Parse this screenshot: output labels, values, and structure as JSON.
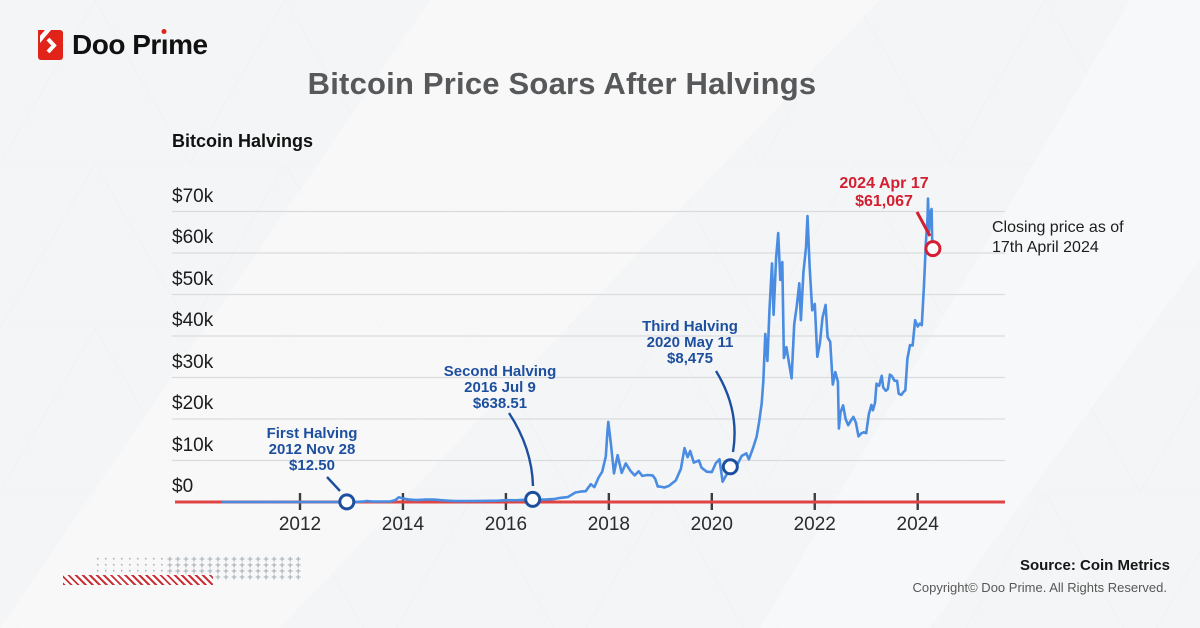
{
  "brand": {
    "name": "Doo Prime",
    "logo_red": "#e2231a",
    "wordmark_pre": "Doo Pr",
    "wordmark_dotless_i": "ı",
    "wordmark_post": "me"
  },
  "header": {
    "title": "Bitcoin Price Soars After Halvings"
  },
  "chart_data": {
    "type": "line",
    "title": "Bitcoin Halvings",
    "series_name": "Bitcoin closing price (USD)",
    "line_color": "#4a8ce1",
    "baseline_color": "#e04343",
    "grid_color": "#d9dcdd",
    "annotation_blue": "#1d4f9f",
    "annotation_red": "#d41e31",
    "ylim": [
      0,
      74000
    ],
    "xlim": [
      2010.5,
      2025.2
    ],
    "y_ticks": [
      {
        "v": 0,
        "label": "$0"
      },
      {
        "v": 10000,
        "label": "$10k"
      },
      {
        "v": 20000,
        "label": "$20k"
      },
      {
        "v": 30000,
        "label": "$30k"
      },
      {
        "v": 40000,
        "label": "$40k"
      },
      {
        "v": 50000,
        "label": "$50k"
      },
      {
        "v": 60000,
        "label": "$60k"
      },
      {
        "v": 70000,
        "label": "$70k"
      }
    ],
    "x_ticks": [
      {
        "year": 2012,
        "label": "2012"
      },
      {
        "year": 2014,
        "label": "2014"
      },
      {
        "year": 2016,
        "label": "2016"
      },
      {
        "year": 2018,
        "label": "2018"
      },
      {
        "year": 2020,
        "label": "2020"
      },
      {
        "year": 2022,
        "label": "2022"
      },
      {
        "year": 2024,
        "label": "2024"
      }
    ],
    "points": [
      [
        2010.5,
        0.1
      ],
      [
        2010.8,
        0.2
      ],
      [
        2011.0,
        0.3
      ],
      [
        2011.3,
        1
      ],
      [
        2011.45,
        30
      ],
      [
        2011.6,
        11
      ],
      [
        2011.9,
        3
      ],
      [
        2012.2,
        5
      ],
      [
        2012.5,
        6.7
      ],
      [
        2012.75,
        11
      ],
      [
        2012.91,
        12.5
      ],
      [
        2013.1,
        25
      ],
      [
        2013.25,
        140
      ],
      [
        2013.3,
        230
      ],
      [
        2013.4,
        100
      ],
      [
        2013.6,
        100
      ],
      [
        2013.75,
        130
      ],
      [
        2013.85,
        450
      ],
      [
        2013.92,
        1130
      ],
      [
        2014.0,
        840
      ],
      [
        2014.1,
        620
      ],
      [
        2014.25,
        450
      ],
      [
        2014.45,
        600
      ],
      [
        2014.6,
        590
      ],
      [
        2014.8,
        380
      ],
      [
        2015.0,
        230
      ],
      [
        2015.1,
        210
      ],
      [
        2015.3,
        245
      ],
      [
        2015.55,
        260
      ],
      [
        2015.85,
        310
      ],
      [
        2016.0,
        430
      ],
      [
        2016.2,
        420
      ],
      [
        2016.45,
        580
      ],
      [
        2016.52,
        638.51
      ],
      [
        2016.65,
        600
      ],
      [
        2016.8,
        630
      ],
      [
        2016.95,
        750
      ],
      [
        2017.05,
        1000
      ],
      [
        2017.2,
        1180
      ],
      [
        2017.35,
        2300
      ],
      [
        2017.45,
        2500
      ],
      [
        2017.55,
        2600
      ],
      [
        2017.65,
        4300
      ],
      [
        2017.72,
        3600
      ],
      [
        2017.8,
        5900
      ],
      [
        2017.87,
        7300
      ],
      [
        2017.94,
        11000
      ],
      [
        2017.97,
        16500
      ],
      [
        2017.99,
        19300
      ],
      [
        2018.04,
        14000
      ],
      [
        2018.1,
        6900
      ],
      [
        2018.17,
        11300
      ],
      [
        2018.25,
        7000
      ],
      [
        2018.33,
        9300
      ],
      [
        2018.42,
        7500
      ],
      [
        2018.5,
        6400
      ],
      [
        2018.58,
        7400
      ],
      [
        2018.65,
        6300
      ],
      [
        2018.75,
        6500
      ],
      [
        2018.85,
        6400
      ],
      [
        2018.9,
        5600
      ],
      [
        2018.95,
        3700
      ],
      [
        2019.0,
        3700
      ],
      [
        2019.08,
        3500
      ],
      [
        2019.17,
        3900
      ],
      [
        2019.3,
        5200
      ],
      [
        2019.4,
        8000
      ],
      [
        2019.47,
        13000
      ],
      [
        2019.53,
        10800
      ],
      [
        2019.58,
        12300
      ],
      [
        2019.65,
        9500
      ],
      [
        2019.75,
        10000
      ],
      [
        2019.8,
        8300
      ],
      [
        2019.9,
        7300
      ],
      [
        2020.0,
        7200
      ],
      [
        2020.08,
        9400
      ],
      [
        2020.15,
        10300
      ],
      [
        2020.21,
        4900
      ],
      [
        2020.3,
        6900
      ],
      [
        2020.36,
        8475
      ],
      [
        2020.45,
        9700
      ],
      [
        2020.5,
        9100
      ],
      [
        2020.58,
        11100
      ],
      [
        2020.67,
        11700
      ],
      [
        2020.72,
        10300
      ],
      [
        2020.8,
        13000
      ],
      [
        2020.87,
        15700
      ],
      [
        2020.92,
        19400
      ],
      [
        2020.97,
        23800
      ],
      [
        2021.0,
        29000
      ],
      [
        2021.04,
        40500
      ],
      [
        2021.08,
        34000
      ],
      [
        2021.12,
        46400
      ],
      [
        2021.17,
        57500
      ],
      [
        2021.2,
        45100
      ],
      [
        2021.25,
        58800
      ],
      [
        2021.29,
        64800
      ],
      [
        2021.33,
        53500
      ],
      [
        2021.37,
        57800
      ],
      [
        2021.4,
        34700
      ],
      [
        2021.45,
        37300
      ],
      [
        2021.5,
        33500
      ],
      [
        2021.55,
        29800
      ],
      [
        2021.6,
        42800
      ],
      [
        2021.65,
        47100
      ],
      [
        2021.7,
        52700
      ],
      [
        2021.73,
        43800
      ],
      [
        2021.78,
        55300
      ],
      [
        2021.83,
        61300
      ],
      [
        2021.86,
        68900
      ],
      [
        2021.9,
        56900
      ],
      [
        2021.95,
        46200
      ],
      [
        2022.0,
        47700
      ],
      [
        2022.05,
        35000
      ],
      [
        2022.1,
        38300
      ],
      [
        2022.15,
        44400
      ],
      [
        2022.21,
        47500
      ],
      [
        2022.25,
        39700
      ],
      [
        2022.3,
        38600
      ],
      [
        2022.35,
        28300
      ],
      [
        2022.4,
        31300
      ],
      [
        2022.45,
        29000
      ],
      [
        2022.47,
        17700
      ],
      [
        2022.5,
        21600
      ],
      [
        2022.55,
        23300
      ],
      [
        2022.6,
        20000
      ],
      [
        2022.65,
        18500
      ],
      [
        2022.7,
        19600
      ],
      [
        2022.75,
        20500
      ],
      [
        2022.8,
        19100
      ],
      [
        2022.85,
        15800
      ],
      [
        2022.9,
        16500
      ],
      [
        2022.95,
        16800
      ],
      [
        2023.0,
        16600
      ],
      [
        2023.05,
        21100
      ],
      [
        2023.1,
        23400
      ],
      [
        2023.13,
        22100
      ],
      [
        2023.17,
        23900
      ],
      [
        2023.2,
        28500
      ],
      [
        2023.25,
        28000
      ],
      [
        2023.3,
        30400
      ],
      [
        2023.33,
        27600
      ],
      [
        2023.38,
        26800
      ],
      [
        2023.42,
        27200
      ],
      [
        2023.46,
        30700
      ],
      [
        2023.5,
        30300
      ],
      [
        2023.55,
        29200
      ],
      [
        2023.6,
        29200
      ],
      [
        2023.63,
        26100
      ],
      [
        2023.68,
        25800
      ],
      [
        2023.73,
        26600
      ],
      [
        2023.76,
        26900
      ],
      [
        2023.8,
        34500
      ],
      [
        2023.85,
        37800
      ],
      [
        2023.9,
        37700
      ],
      [
        2023.95,
        43800
      ],
      [
        2024.0,
        42300
      ],
      [
        2024.04,
        43000
      ],
      [
        2024.08,
        42600
      ],
      [
        2024.12,
        51800
      ],
      [
        2024.16,
        62500
      ],
      [
        2024.19,
        68300
      ],
      [
        2024.2,
        73100
      ],
      [
        2024.22,
        65300
      ],
      [
        2024.24,
        69400
      ],
      [
        2024.27,
        70600
      ],
      [
        2024.28,
        63800
      ],
      [
        2024.295,
        61067
      ]
    ],
    "annotations": [
      {
        "id": "first-halving",
        "t": 2012.91,
        "v": 12.5,
        "color": "#1d4f9f",
        "lines": [
          "First Halving",
          "2012 Nov 28",
          "$12.50"
        ]
      },
      {
        "id": "second-halving",
        "t": 2016.52,
        "v": 638.51,
        "color": "#1d4f9f",
        "lines": [
          "Second Halving",
          "2016 Jul 9",
          "$638.51"
        ]
      },
      {
        "id": "third-halving",
        "t": 2020.36,
        "v": 8475,
        "color": "#1d4f9f",
        "lines": [
          "Third Halving",
          "2020 May 11",
          "$8,475"
        ]
      },
      {
        "id": "latest-close",
        "t": 2024.295,
        "v": 61067,
        "color": "#d41e31",
        "lines": [
          "2024 Apr 17",
          "$61,067"
        ]
      }
    ],
    "note": {
      "lines": [
        "Closing price as of",
        "17th April 2024"
      ]
    }
  },
  "footer": {
    "source": "Source: Coin Metrics",
    "copyright": "Copyright© Doo Prime. All Rights Reserved."
  }
}
